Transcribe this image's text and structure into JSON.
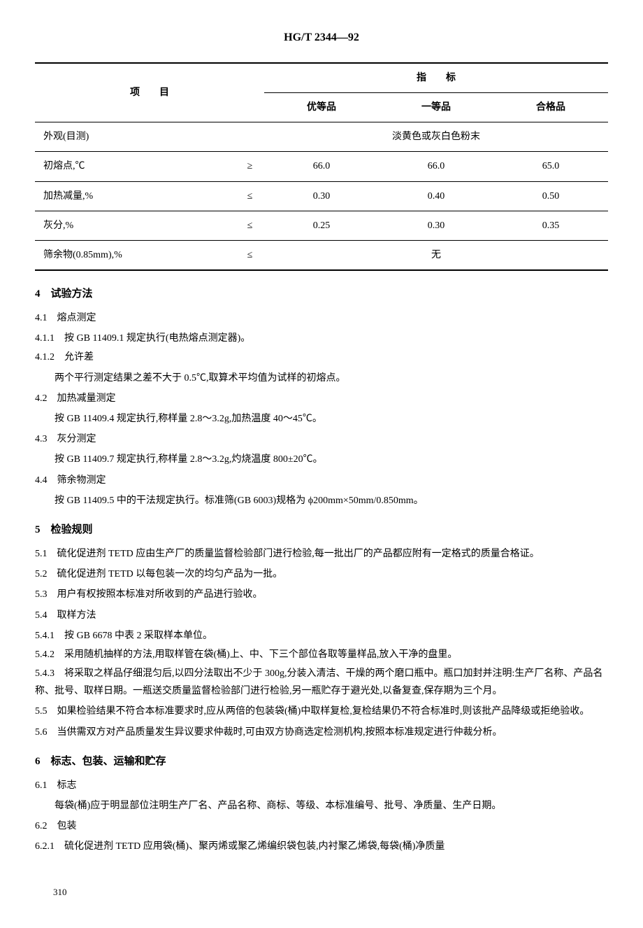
{
  "standard_code": "HG/T 2344—92",
  "table": {
    "header": {
      "item": "项　　目",
      "spec": "指　　标",
      "grade1": "优等品",
      "grade2": "一等品",
      "grade3": "合格品"
    },
    "rows": [
      {
        "item": "外观(目测)",
        "op": "",
        "v1": "",
        "v2": "淡黄色或灰白色粉末",
        "v3": "",
        "merged": true
      },
      {
        "item": "初熔点,℃",
        "op": "≥",
        "v1": "66.0",
        "v2": "66.0",
        "v3": "65.0"
      },
      {
        "item": "加热减量,%",
        "op": "≤",
        "v1": "0.30",
        "v2": "0.40",
        "v3": "0.50"
      },
      {
        "item": "灰分,%",
        "op": "≤",
        "v1": "0.25",
        "v2": "0.30",
        "v3": "0.35"
      },
      {
        "item": "筛余物(0.85mm),%",
        "op": "≤",
        "v1": "",
        "v2": "无",
        "v3": "",
        "merged": true
      }
    ]
  },
  "sec4": {
    "title": "4　试验方法",
    "s4_1": "4.1　熔点测定",
    "s4_1_1": "4.1.1　按 GB 11409.1 规定执行(电热熔点测定器)。",
    "s4_1_2": "4.1.2　允许差",
    "s4_1_2_body": "两个平行测定结果之差不大于 0.5℃,取算术平均值为试样的初熔点。",
    "s4_2": "4.2　加热减量测定",
    "s4_2_body": "按 GB 11409.4 规定执行,称样量 2.8～3.2g,加热温度 40～45℃。",
    "s4_3": "4.3　灰分测定",
    "s4_3_body": "按 GB 11409.7 规定执行,称样量 2.8～3.2g,灼烧温度 800±20℃。",
    "s4_4": "4.4　筛余物测定",
    "s4_4_body": "按 GB 11409.5 中的干法规定执行。标准筛(GB 6003)规格为 ϕ200mm×50mm/0.850mm。"
  },
  "sec5": {
    "title": "5　检验规则",
    "s5_1": "5.1　硫化促进剂 TETD 应由生产厂的质量监督检验部门进行检验,每一批出厂的产品都应附有一定格式的质量合格证。",
    "s5_2": "5.2　硫化促进剂 TETD 以每包装一次的均匀产品为一批。",
    "s5_3": "5.3　用户有权按照本标准对所收到的产品进行验收。",
    "s5_4": "5.4　取样方法",
    "s5_4_1": "5.4.1　按 GB 6678 中表 2 采取样本单位。",
    "s5_4_2": "5.4.2　采用随机抽样的方法,用取样管在袋(桶)上、中、下三个部位各取等量样品,放入干净的盘里。",
    "s5_4_3": "5.4.3　将采取之样品仔细混匀后,以四分法取出不少于 300g,分装入清洁、干燥的两个磨口瓶中。瓶口加封并注明:生产厂名称、产品名称、批号、取样日期。一瓶送交质量监督检验部门进行检验,另一瓶贮存于避光处,以备复查,保存期为三个月。",
    "s5_5": "5.5　如果检验结果不符合本标准要求时,应从两倍的包装袋(桶)中取样复检,复检结果仍不符合标准时,则该批产品降级或拒绝验收。",
    "s5_6": "5.6　当供需双方对产品质量发生异议要求仲裁时,可由双方协商选定检测机构,按照本标准规定进行仲裁分析。"
  },
  "sec6": {
    "title": "6　标志、包装、运输和贮存",
    "s6_1": "6.1　标志",
    "s6_1_body": "每袋(桶)应于明显部位注明生产厂名、产品名称、商标、等级、本标准编号、批号、净质量、生产日期。",
    "s6_2": "6.2　包装",
    "s6_2_1": "6.2.1　硫化促进剂 TETD 应用袋(桶)、聚丙烯或聚乙烯编织袋包装,内衬聚乙烯袋,每袋(桶)净质量"
  },
  "page_num": "310"
}
